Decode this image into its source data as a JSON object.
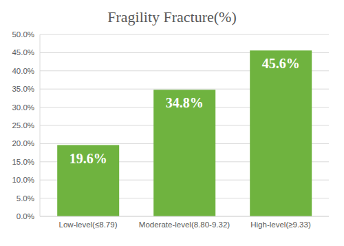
{
  "chart_data": {
    "type": "bar",
    "title": "Fragility Fracture(%)",
    "categories": [
      "Low-level(≤8.79)",
      "Moderate-level(8.80-9.32)",
      "High-level(≥9.33)"
    ],
    "values": [
      19.6,
      34.8,
      45.6
    ],
    "value_labels": [
      "19.6%",
      "34.8%",
      "45.6%"
    ],
    "color": "#6fb33f",
    "ylim": [
      0,
      50
    ],
    "yticks": [
      {
        "value": 0,
        "label": "0.0%"
      },
      {
        "value": 5,
        "label": "5.0%"
      },
      {
        "value": 10,
        "label": "10.0%"
      },
      {
        "value": 15,
        "label": "15.0%"
      },
      {
        "value": 20,
        "label": "20.0%"
      },
      {
        "value": 25,
        "label": "25.0%"
      },
      {
        "value": 30,
        "label": "30.0%"
      },
      {
        "value": 35,
        "label": "35.0%"
      },
      {
        "value": 40,
        "label": "40.0%"
      },
      {
        "value": 45,
        "label": "45.0%"
      },
      {
        "value": 50,
        "label": "50.0%"
      }
    ],
    "grid": true,
    "data_labels": true
  }
}
